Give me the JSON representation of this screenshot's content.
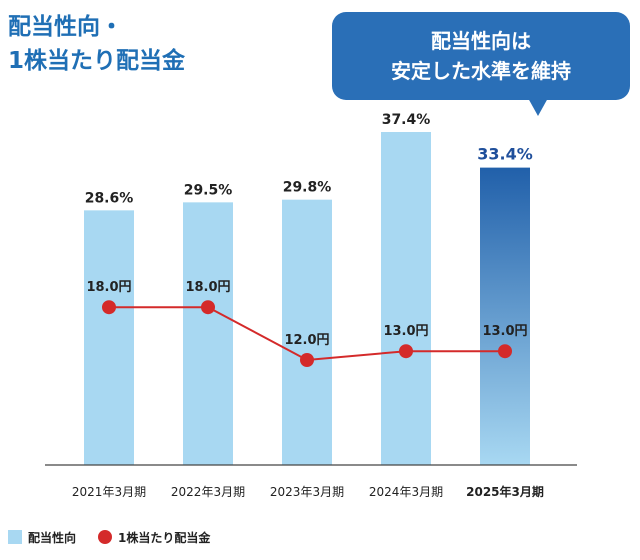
{
  "title_lines": [
    "配当性向・",
    "1株当たり配当金"
  ],
  "callout_lines": [
    "配当性向は",
    "安定した水準を維持"
  ],
  "colors": {
    "title": "#1f6fb5",
    "bar": "#a8d8f2",
    "bar_highlight_top": "#2160aa",
    "bar_highlight_bottom": "#a8d8f2",
    "line": "#d42a2a",
    "callout_bg": "#2a6fb7",
    "highlight_label": "#1f4f9b"
  },
  "legend": {
    "bar_label": "配当性向",
    "line_label": "1株当たり配当金"
  },
  "chart_data": {
    "type": "bar",
    "categories": [
      "2021年3月期",
      "2022年3月期",
      "2023年3月期",
      "2024年3月期",
      "2025年3月期"
    ],
    "series": [
      {
        "name": "配当性向",
        "type": "bar",
        "values": [
          28.6,
          29.5,
          29.8,
          37.4,
          33.4
        ],
        "labels": [
          "28.6%",
          "29.5%",
          "29.8%",
          "37.4%",
          "33.4%"
        ]
      },
      {
        "name": "1株当たり配当金",
        "type": "line",
        "values": [
          18.0,
          18.0,
          12.0,
          13.0,
          13.0
        ],
        "labels": [
          "18.0円",
          "18.0円",
          "12.0円",
          "13.0円",
          "13.0円"
        ]
      }
    ],
    "highlight_index": 4,
    "legend_position": "bottom-left",
    "grid": false
  }
}
